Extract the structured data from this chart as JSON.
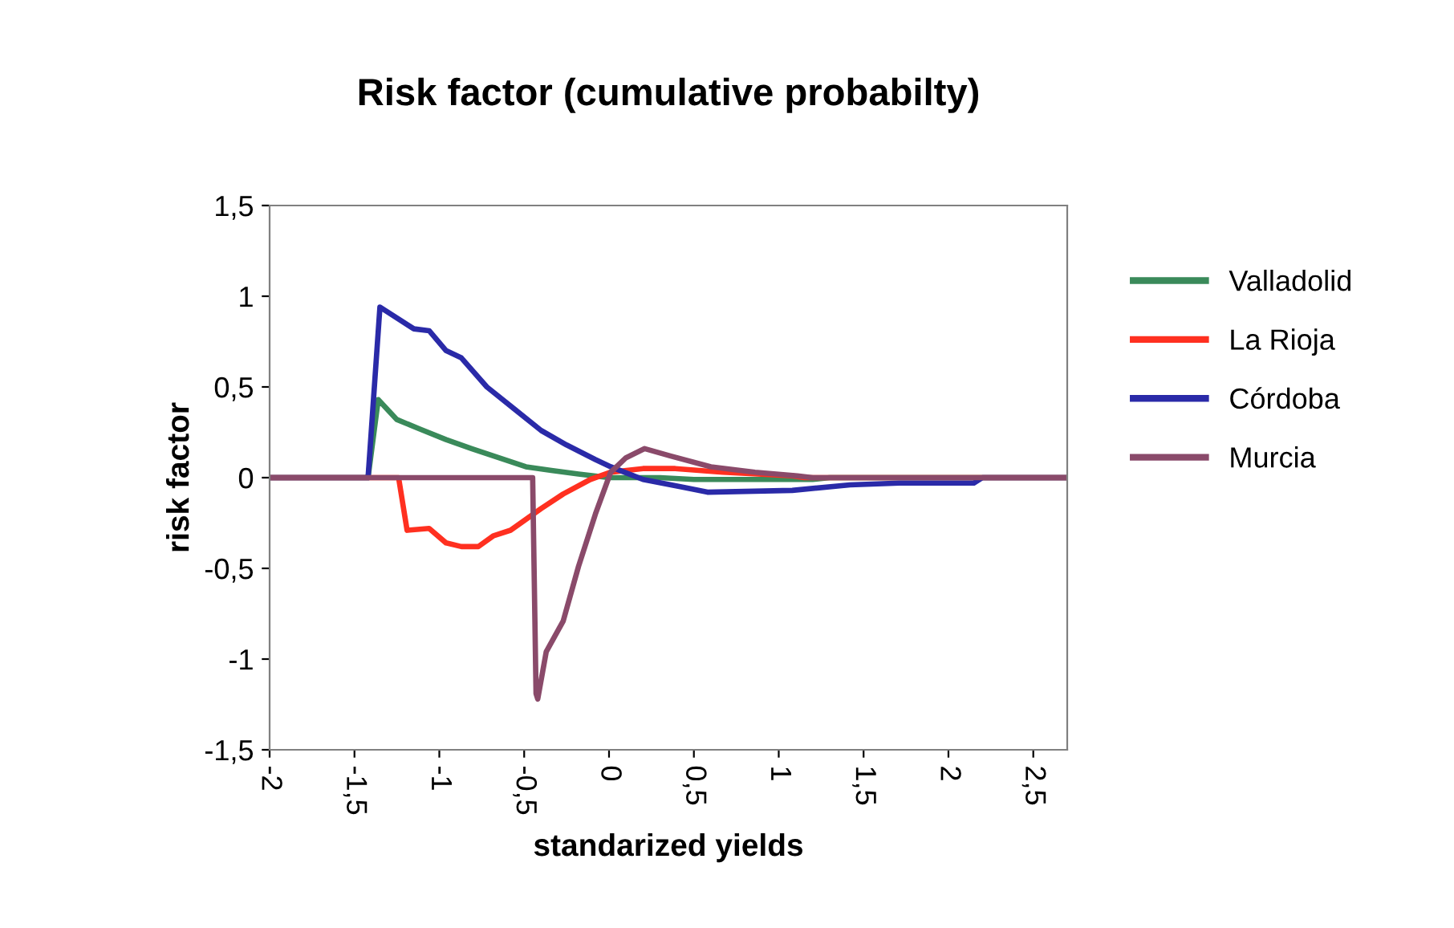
{
  "chart_data": {
    "type": "line",
    "title": "Risk factor (cumulative probabilty)",
    "xlabel": "standarized yields",
    "ylabel": "risk factor",
    "xlim": [
      -2,
      2.7
    ],
    "ylim": [
      -1.5,
      1.5
    ],
    "xticks": [
      {
        "value": -2,
        "label": "-2"
      },
      {
        "value": -1.5,
        "label": "-1,5"
      },
      {
        "value": -1,
        "label": "-1"
      },
      {
        "value": -0.5,
        "label": "-0,5"
      },
      {
        "value": 0,
        "label": "0"
      },
      {
        "value": 0.5,
        "label": "0,5"
      },
      {
        "value": 1,
        "label": "1"
      },
      {
        "value": 1.5,
        "label": "1,5"
      },
      {
        "value": 2,
        "label": "2"
      },
      {
        "value": 2.5,
        "label": "2,5"
      }
    ],
    "yticks": [
      {
        "value": -1.5,
        "label": "-1,5"
      },
      {
        "value": -1,
        "label": "-1"
      },
      {
        "value": -0.5,
        "label": "-0,5"
      },
      {
        "value": 0,
        "label": "0"
      },
      {
        "value": 0.5,
        "label": "0,5"
      },
      {
        "value": 1,
        "label": "1"
      },
      {
        "value": 1.5,
        "label": "1,5"
      }
    ],
    "grid": false,
    "legend": "right",
    "marker": "none",
    "line_style": "solid",
    "series": [
      {
        "name": "Valladolid",
        "color": "#3a8a5a",
        "x": [
          -2,
          -1.42,
          -1.36,
          -1.25,
          -1.12,
          -0.96,
          -0.81,
          -0.65,
          -0.49,
          -0.34,
          -0.18,
          0.0,
          0.3,
          0.5,
          1.2,
          1.3,
          2.7
        ],
        "values": [
          0,
          0,
          0.43,
          0.32,
          0.27,
          0.21,
          0.16,
          0.11,
          0.06,
          0.04,
          0.02,
          0.0,
          0.0,
          -0.01,
          -0.01,
          0,
          0
        ]
      },
      {
        "name": "La Rioja",
        "color": "#ff3020",
        "x": [
          -2,
          -1.24,
          -1.19,
          -1.06,
          -0.96,
          -0.87,
          -0.77,
          -0.68,
          -0.58,
          -0.49,
          -0.4,
          -0.27,
          -0.11,
          0.01,
          0.2,
          0.39,
          0.67,
          1.08,
          1.15,
          2.7
        ],
        "values": [
          0,
          0,
          -0.29,
          -0.28,
          -0.36,
          -0.38,
          -0.38,
          -0.32,
          -0.29,
          -0.23,
          -0.17,
          -0.09,
          -0.01,
          0.03,
          0.05,
          0.05,
          0.03,
          0.01,
          0,
          0
        ]
      },
      {
        "name": "Córdoba",
        "color": "#2a2aa8",
        "x": [
          -2,
          -1.42,
          -1.35,
          -1.15,
          -1.06,
          -0.96,
          -0.87,
          -0.72,
          -0.56,
          -0.4,
          -0.25,
          -0.08,
          0.01,
          0.2,
          0.42,
          0.58,
          1.08,
          1.42,
          1.71,
          2.15,
          2.2,
          2.7
        ],
        "values": [
          0,
          0,
          0.94,
          0.82,
          0.81,
          0.7,
          0.66,
          0.5,
          0.38,
          0.26,
          0.18,
          0.1,
          0.06,
          -0.01,
          -0.05,
          -0.08,
          -0.07,
          -0.04,
          -0.03,
          -0.03,
          0,
          0
        ]
      },
      {
        "name": "Murcia",
        "color": "#8a4a6a",
        "x": [
          -2,
          -0.45,
          -0.43,
          -0.42,
          -0.37,
          -0.27,
          -0.18,
          -0.08,
          0.01,
          0.1,
          0.21,
          0.36,
          0.6,
          0.86,
          1.11,
          1.2,
          2.7
        ],
        "values": [
          0,
          0,
          -1.19,
          -1.22,
          -0.96,
          -0.79,
          -0.49,
          -0.2,
          0.03,
          0.11,
          0.16,
          0.12,
          0.06,
          0.03,
          0.01,
          0,
          0
        ]
      }
    ]
  }
}
